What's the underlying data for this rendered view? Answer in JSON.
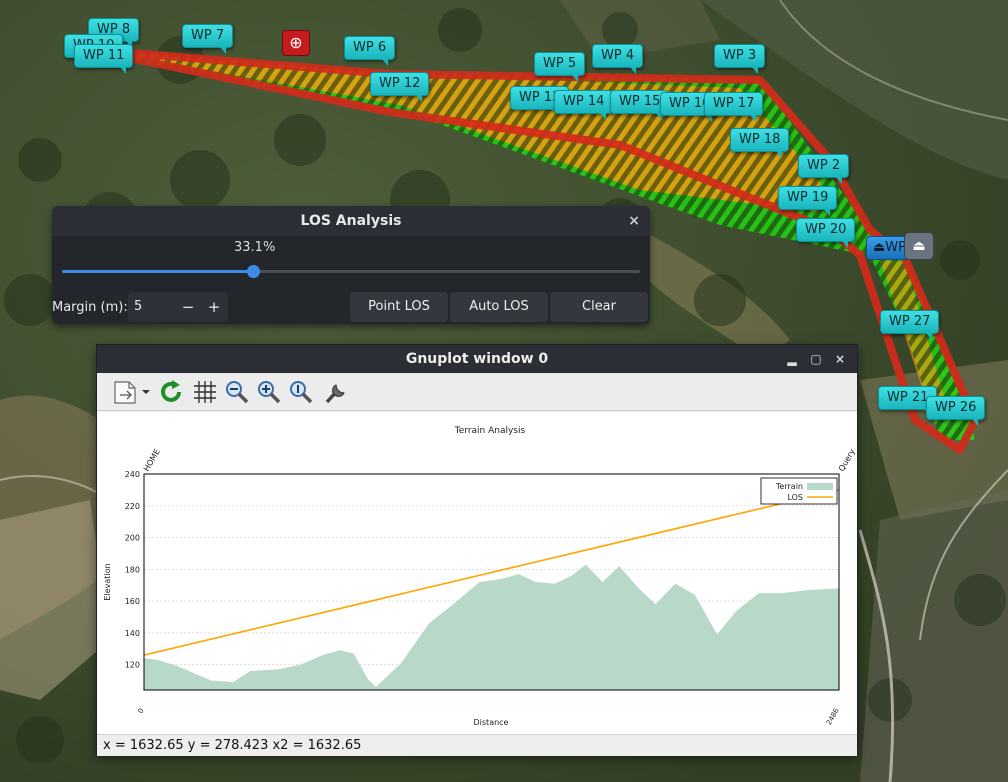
{
  "map": {
    "waypoints": [
      {
        "label": "WP 8"
      },
      {
        "label": "WP 10"
      },
      {
        "label": "WP 11"
      },
      {
        "label": "WP 7"
      },
      {
        "label": "WP 6"
      },
      {
        "label": "WP 12"
      },
      {
        "label": "WP 5"
      },
      {
        "label": "WP 4"
      },
      {
        "label": "WP 3"
      },
      {
        "label": "WP 13"
      },
      {
        "label": "WP 14"
      },
      {
        "label": "WP 15"
      },
      {
        "label": "WP 16"
      },
      {
        "label": "WP 17"
      },
      {
        "label": "WP 18"
      },
      {
        "label": "WP 2"
      },
      {
        "label": "WP 19"
      },
      {
        "label": "WP 20"
      },
      {
        "label": "WP 27"
      },
      {
        "label": "WP 21"
      },
      {
        "label": "WP 26"
      }
    ],
    "home_label": "⏏WP",
    "eject_icon": "⏏",
    "target_icon": "⊕",
    "colors": {
      "path_red": "#d42a1a",
      "los_green": "#22e012",
      "los_orange": "#ff9a10"
    }
  },
  "los_dialog": {
    "title": "LOS Analysis",
    "close": "×",
    "progress_label": "33.1%",
    "progress": 0.331,
    "margin_label": "Margin (m):",
    "margin_value": "5",
    "minus": "−",
    "plus": "+",
    "buttons": {
      "point_los": "Point LOS",
      "auto_los": "Auto LOS",
      "clear": "Clear"
    }
  },
  "gnuplot": {
    "title": "Gnuplot window 0",
    "window_buttons": {
      "minimize": "▂",
      "maximize": "▢",
      "close": "×"
    },
    "toolbar_icons": [
      "export-icon",
      "replot-icon",
      "grid-icon",
      "zoom-out-icon",
      "zoom-in-icon",
      "zoom-reset-icon",
      "settings-icon"
    ],
    "status": "x = 1632.65 y = 278.423 x2 = 1632.65"
  },
  "chart_data": {
    "type": "area",
    "title": "Terrain Analysis",
    "xlabel": "Distance",
    "ylabel": "Elevation",
    "xlim": [
      0,
      2486
    ],
    "ylim": [
      104,
      240
    ],
    "yticks": [
      120,
      140,
      160,
      180,
      200,
      220,
      240
    ],
    "xtick_labels": [
      "0",
      "2486"
    ],
    "top_labels": [
      "HOME",
      "Query"
    ],
    "legend": [
      {
        "name": "Terrain",
        "color": "#b8d8c8"
      },
      {
        "name": "LOS",
        "color": "#ffa500"
      }
    ],
    "legend_position": "top-right",
    "grid": true,
    "series": [
      {
        "name": "Terrain",
        "x": [
          0,
          50,
          120,
          240,
          320,
          380,
          480,
          560,
          640,
          700,
          750,
          800,
          830,
          920,
          1020,
          1120,
          1200,
          1280,
          1340,
          1400,
          1470,
          1530,
          1580,
          1640,
          1700,
          1770,
          1830,
          1900,
          1970,
          2050,
          2120,
          2200,
          2280,
          2380,
          2486
        ],
        "y": [
          124,
          123,
          119,
          110,
          109,
          116,
          117,
          120,
          126,
          129,
          127,
          111,
          106,
          121,
          146,
          160,
          172,
          174,
          177,
          172,
          171,
          176,
          183,
          172,
          182,
          168,
          158,
          171,
          164,
          139,
          154,
          165,
          165,
          167,
          168
        ]
      },
      {
        "name": "LOS",
        "x": [
          0,
          2486
        ],
        "y": [
          126,
          230
        ]
      }
    ]
  }
}
